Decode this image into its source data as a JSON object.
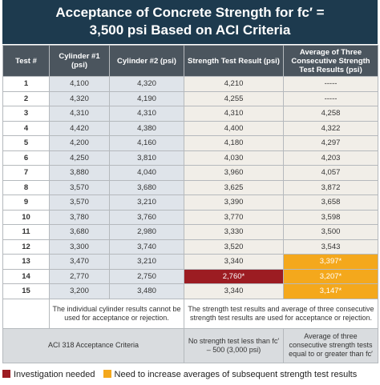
{
  "title": [
    "Acceptance of Concrete Strength for fc′ =",
    "3,500 psi Based on ACI Criteria"
  ],
  "table": {
    "headers": [
      "Test #",
      "Cylinder #1 (psi)",
      "Cylinder #2 (psi)",
      "Strength Test Result (psi)",
      "Average of Three Consecutive Strength Test Results (psi)"
    ],
    "rows": [
      [
        "1",
        "4,100",
        "4,320",
        "4,210",
        "-----"
      ],
      [
        "2",
        "4,320",
        "4,190",
        "4,255",
        "-----"
      ],
      [
        "3",
        "4,310",
        "4,310",
        "4,310",
        "4,258"
      ],
      [
        "4",
        "4,420",
        "4,380",
        "4,400",
        "4,322"
      ],
      [
        "5",
        "4,200",
        "4,160",
        "4,180",
        "4,297"
      ],
      [
        "6",
        "4,250",
        "3,810",
        "4,030",
        "4,203"
      ],
      [
        "7",
        "3,880",
        "4,040",
        "3,960",
        "4,057"
      ],
      [
        "8",
        "3,570",
        "3,680",
        "3,625",
        "3,872"
      ],
      [
        "9",
        "3,570",
        "3,210",
        "3,390",
        "3,658"
      ],
      [
        "10",
        "3,780",
        "3,760",
        "3,770",
        "3,598"
      ],
      [
        "11",
        "3,680",
        "2,980",
        "3,330",
        "3,500"
      ],
      [
        "12",
        "3,300",
        "3,740",
        "3,520",
        "3,543"
      ],
      [
        "13",
        "3,470",
        "3,210",
        "3,340",
        {
          "text": "3,397*",
          "color": "#f4a81c"
        }
      ],
      [
        "14",
        "2,770",
        "2,750",
        {
          "text": "2,760*",
          "color": "#9c1c22"
        },
        {
          "text": "3,207*",
          "color": "#f4a81c"
        }
      ],
      [
        "15",
        "3,200",
        "3,480",
        "3,340",
        {
          "text": "3,147*",
          "color": "#f4a81c"
        }
      ]
    ],
    "notes": [
      "The individual cylinder results cannot be used for acceptance or rejection.",
      "The strength test results and average of three consecutive strength test results are used for acceptance or rejection."
    ],
    "criteria": [
      "ACI 318 Acceptance Criteria",
      "No strength test less than fc′ – 500 (3,000 psi)",
      "Average of three consecutive strength tests equal to or greater than fc′"
    ]
  },
  "legend": [
    {
      "label": "Investigation needed",
      "color": "#9c1c22"
    },
    {
      "label": "Need to increase averages of subsequent strength test results",
      "color": "#f4a81c"
    }
  ]
}
